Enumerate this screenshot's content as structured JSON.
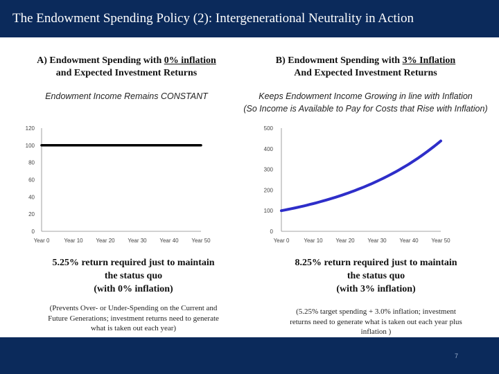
{
  "header": {
    "title": "The Endowment Spending Policy (2): Intergenerational Neutrality in Action"
  },
  "left": {
    "title_prefix": "A) Endowment Spending with ",
    "title_underlined": "0% inflation",
    "title_line2": "and Expected Investment Returns",
    "subtitle": "Endowment Income Remains CONSTANT",
    "message_line1": "5.25% return required just to maintain",
    "message_line2": "the status quo",
    "message_line3": "(with 0% inflation)",
    "note_line1": "(Prevents Over- or Under-Spending on the Current and",
    "note_line2": "Future Generations; investment returns need to generate",
    "note_line3": "what is taken out each year)"
  },
  "right": {
    "title_prefix": "B) Endowment Spending with ",
    "title_underlined": "3% Inflation",
    "title_line2": "And Expected Investment Returns",
    "subtitle_line1": "Keeps Endowment Income Growing in line with Inflation",
    "subtitle_line2": "(So Income is Available to Pay for Costs that Rise with Inflation)",
    "message_line1": "8.25% return required just to maintain",
    "message_line2": "the status quo",
    "message_line3": "(with 3% inflation)",
    "note_line1": "(5.25% target spending + 3.0% inflation; investment",
    "note_line2": "returns need to generate what is taken out each year plus",
    "note_line3": "inflation )"
  },
  "footer": {
    "page_number": "7"
  },
  "chart_data": [
    {
      "type": "line",
      "title": "",
      "xlabel": "",
      "ylabel": "",
      "categories": [
        "Year 0",
        "Year 10",
        "Year 20",
        "Year 30",
        "Year 40",
        "Year 50"
      ],
      "x": [
        0,
        10,
        20,
        30,
        40,
        50
      ],
      "y_ticks": [
        0,
        20,
        40,
        60,
        80,
        100,
        120
      ],
      "ylim": [
        0,
        120
      ],
      "grid": false,
      "line_color": "#000000",
      "series": [
        {
          "x": [
            0,
            50
          ],
          "values": [
            100,
            100
          ]
        }
      ]
    },
    {
      "type": "line",
      "title": "",
      "xlabel": "",
      "ylabel": "",
      "categories": [
        "Year 0",
        "Year 10",
        "Year 20",
        "Year 30",
        "Year 40",
        "Year 50"
      ],
      "x": [
        0,
        10,
        20,
        30,
        40,
        50
      ],
      "y_ticks": [
        0,
        100,
        200,
        300,
        400,
        500
      ],
      "ylim": [
        0,
        500
      ],
      "grid": false,
      "line_color": "#2e2ec9",
      "series": [
        {
          "x": [
            0,
            10,
            20,
            30,
            40,
            50
          ],
          "values": [
            100,
            134,
            181,
            243,
            326,
            438
          ]
        }
      ]
    }
  ]
}
